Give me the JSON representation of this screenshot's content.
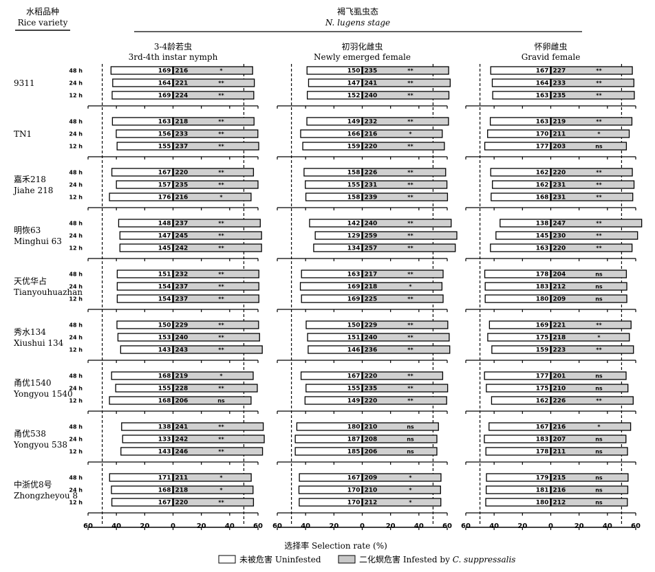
{
  "header": {
    "variety_label_cn": "水稻品种",
    "variety_label_en": "Rice variety",
    "stage_label_cn": "褐飞虱虫态",
    "stage_label_en": "N. lugens stage"
  },
  "xlabel": "选择率 Selection rate (%)",
  "legend": [
    {
      "label": "未被危害 Uninfested",
      "color": "#ffffff"
    },
    {
      "label": "二化螟危害 Infested by ",
      "label_italic": "C. suppressalis",
      "color": "#d3d3d3"
    }
  ],
  "chart_data": {
    "type": "bar",
    "orientation": "horizontal-diverging",
    "xlim": [
      -60,
      60
    ],
    "xticks": [
      "60",
      "40",
      "20",
      "0",
      "20",
      "40",
      "60"
    ],
    "reference_lines": [
      -50,
      50
    ],
    "times": [
      "48 h",
      "24 h",
      "12 h"
    ],
    "panels": [
      {
        "label_cn": "3-4龄若虫",
        "label_en": "3rd-4th instar nymph"
      },
      {
        "label_cn": "初羽化雌虫",
        "label_en": "Newly emerged female"
      },
      {
        "label_cn": "怀卵雌虫",
        "label_en": "Gravid female"
      }
    ],
    "varieties": [
      {
        "cn": "",
        "en": "9311"
      },
      {
        "cn": "",
        "en": "TN1"
      },
      {
        "cn": "嘉禾218",
        "en": "Jiahe 218"
      },
      {
        "cn": "明恢63",
        "en": "Minghui 63"
      },
      {
        "cn": "天优华占",
        "en": "Tianyouhuazhan"
      },
      {
        "cn": "秀水134",
        "en": "Xiushui 134"
      },
      {
        "cn": "甬优1540",
        "en": "Yongyou 1540"
      },
      {
        "cn": "甬优538",
        "en": "Yongyou 538"
      },
      {
        "cn": "中浙优8号",
        "en": "Zhongzheyou 8"
      }
    ],
    "series": [
      {
        "name": "未被危害 Uninfested"
      },
      {
        "name": "二化螟危害 Infested by C. suppressalis"
      }
    ],
    "data": [
      [
        [
          [
            43.8,
            56.2,
            "169",
            "216",
            "*"
          ],
          [
            42.6,
            57.4,
            "164",
            "221",
            "**"
          ],
          [
            43.0,
            57.0,
            "169",
            "224",
            "**"
          ]
        ],
        [
          [
            42.8,
            57.2,
            "163",
            "218",
            "**"
          ],
          [
            40.1,
            59.9,
            "156",
            "233",
            "**"
          ],
          [
            39.5,
            60.5,
            "155",
            "237",
            "**"
          ]
        ],
        [
          [
            43.2,
            56.8,
            "167",
            "220",
            "**"
          ],
          [
            40.0,
            60.0,
            "157",
            "235",
            "**"
          ],
          [
            44.9,
            55.1,
            "176",
            "216",
            "*"
          ]
        ],
        [
          [
            38.4,
            61.6,
            "148",
            "237",
            "**"
          ],
          [
            37.5,
            62.5,
            "147",
            "245",
            "**"
          ],
          [
            37.5,
            62.5,
            "145",
            "242",
            "**"
          ]
        ],
        [
          [
            39.4,
            60.6,
            "151",
            "232",
            "**"
          ],
          [
            39.4,
            60.6,
            "154",
            "237",
            "**"
          ],
          [
            39.4,
            60.6,
            "154",
            "237",
            "**"
          ]
        ],
        [
          [
            39.6,
            60.4,
            "150",
            "229",
            "**"
          ],
          [
            38.9,
            61.1,
            "153",
            "240",
            "**"
          ],
          [
            37.0,
            63.0,
            "143",
            "243",
            "**"
          ]
        ],
        [
          [
            43.4,
            56.6,
            "168",
            "219",
            "*"
          ],
          [
            40.5,
            59.5,
            "155",
            "228",
            "**"
          ],
          [
            44.9,
            55.1,
            "168",
            "206",
            "ns"
          ]
        ],
        [
          [
            36.3,
            63.7,
            "138",
            "241",
            "**"
          ],
          [
            35.6,
            64.4,
            "133",
            "242",
            "**"
          ],
          [
            36.8,
            63.2,
            "143",
            "246",
            "**"
          ]
        ],
        [
          [
            44.8,
            55.2,
            "171",
            "211",
            "*"
          ],
          [
            43.5,
            56.5,
            "168",
            "218",
            "*"
          ],
          [
            43.2,
            56.8,
            "167",
            "220",
            "**"
          ]
        ]
      ],
      [
        [
          [
            39.0,
            61.0,
            "150",
            "235",
            "**"
          ],
          [
            37.9,
            62.1,
            "147",
            "241",
            "**"
          ],
          [
            38.8,
            61.2,
            "152",
            "240",
            "**"
          ]
        ],
        [
          [
            39.1,
            60.9,
            "149",
            "232",
            "**"
          ],
          [
            43.5,
            56.5,
            "166",
            "216",
            "*"
          ],
          [
            42.0,
            58.0,
            "159",
            "220",
            "**"
          ]
        ],
        [
          [
            41.1,
            58.9,
            "158",
            "226",
            "**"
          ],
          [
            40.2,
            59.8,
            "155",
            "231",
            "**"
          ],
          [
            39.8,
            60.2,
            "158",
            "239",
            "**"
          ]
        ],
        [
          [
            37.2,
            62.8,
            "142",
            "240",
            "**"
          ],
          [
            33.2,
            66.8,
            "129",
            "259",
            "**"
          ],
          [
            34.3,
            65.7,
            "134",
            "257",
            "**"
          ]
        ],
        [
          [
            42.9,
            57.1,
            "163",
            "217",
            "**"
          ],
          [
            43.7,
            56.3,
            "169",
            "218",
            "*"
          ],
          [
            42.9,
            57.1,
            "169",
            "225",
            "**"
          ]
        ],
        [
          [
            39.6,
            60.4,
            "150",
            "229",
            "**"
          ],
          [
            38.6,
            61.4,
            "151",
            "240",
            "**"
          ],
          [
            38.2,
            61.8,
            "146",
            "236",
            "**"
          ]
        ],
        [
          [
            43.2,
            56.8,
            "167",
            "220",
            "**"
          ],
          [
            39.7,
            60.3,
            "155",
            "235",
            "**"
          ],
          [
            40.4,
            59.6,
            "149",
            "220",
            "**"
          ]
        ],
        [
          [
            46.2,
            53.8,
            "180",
            "210",
            "ns"
          ],
          [
            47.3,
            52.7,
            "187",
            "208",
            "ns"
          ],
          [
            47.3,
            52.7,
            "185",
            "206",
            "ns"
          ]
        ],
        [
          [
            44.4,
            55.6,
            "167",
            "209",
            "*"
          ],
          [
            44.7,
            55.3,
            "170",
            "210",
            "*"
          ],
          [
            44.5,
            55.5,
            "170",
            "212",
            "*"
          ]
        ]
      ],
      [
        [
          [
            42.4,
            57.6,
            "167",
            "227",
            "**"
          ],
          [
            41.3,
            58.7,
            "164",
            "233",
            "**"
          ],
          [
            41.0,
            59.0,
            "163",
            "235",
            "**"
          ]
        ],
        [
          [
            42.7,
            57.3,
            "163",
            "219",
            "**"
          ],
          [
            44.6,
            55.4,
            "170",
            "211",
            "*"
          ],
          [
            46.6,
            53.4,
            "177",
            "203",
            "ns"
          ]
        ],
        [
          [
            42.4,
            57.6,
            "162",
            "220",
            "**"
          ],
          [
            41.2,
            58.8,
            "162",
            "231",
            "**"
          ],
          [
            42.1,
            57.9,
            "168",
            "231",
            "**"
          ]
        ],
        [
          [
            35.8,
            64.2,
            "138",
            "247",
            "**"
          ],
          [
            38.7,
            61.3,
            "145",
            "230",
            "**"
          ],
          [
            42.6,
            57.4,
            "163",
            "220",
            "**"
          ]
        ],
        [
          [
            46.6,
            53.4,
            "178",
            "204",
            "ns"
          ],
          [
            46.3,
            53.7,
            "183",
            "212",
            "ns"
          ],
          [
            46.3,
            53.7,
            "180",
            "209",
            "ns"
          ]
        ],
        [
          [
            43.3,
            56.7,
            "169",
            "221",
            "**"
          ],
          [
            44.5,
            55.5,
            "175",
            "218",
            "*"
          ],
          [
            41.6,
            58.4,
            "159",
            "223",
            "**"
          ]
        ],
        [
          [
            46.8,
            53.2,
            "177",
            "201",
            "ns"
          ],
          [
            45.5,
            54.5,
            "175",
            "210",
            "ns"
          ],
          [
            41.8,
            58.2,
            "162",
            "226",
            "**"
          ]
        ],
        [
          [
            43.6,
            56.4,
            "167",
            "216",
            "*"
          ],
          [
            46.9,
            53.1,
            "183",
            "207",
            "ns"
          ],
          [
            45.8,
            54.2,
            "178",
            "211",
            "ns"
          ]
        ],
        [
          [
            45.4,
            54.6,
            "179",
            "215",
            "ns"
          ],
          [
            45.6,
            54.4,
            "181",
            "216",
            "ns"
          ],
          [
            45.9,
            54.1,
            "180",
            "212",
            "ns"
          ]
        ]
      ]
    ]
  }
}
